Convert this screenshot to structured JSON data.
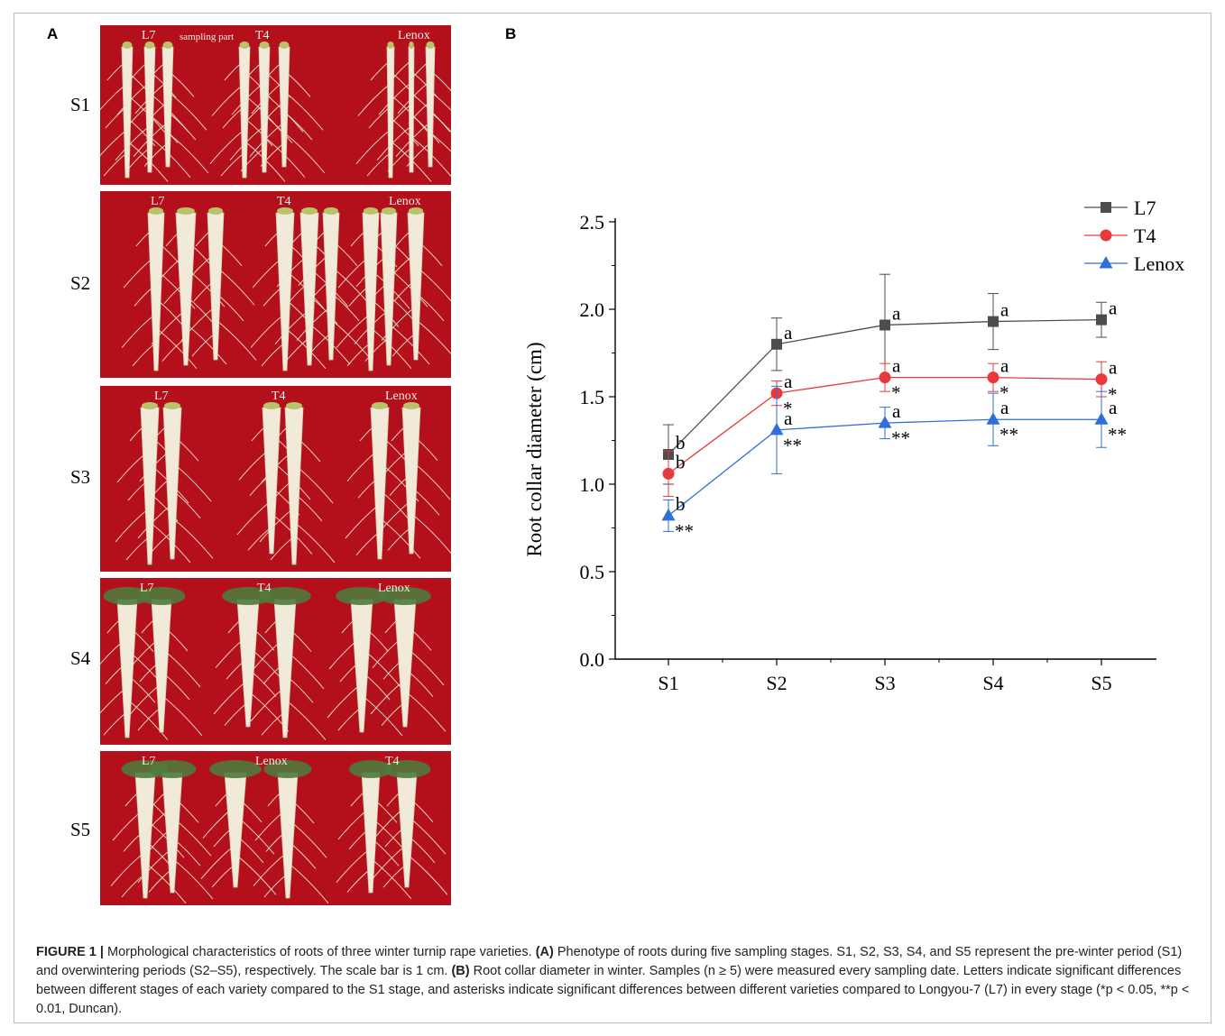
{
  "panels": {
    "a": "A",
    "b": "B"
  },
  "photo_panel": {
    "rows": [
      {
        "stage": "S1",
        "labels": [
          "L7",
          "T4",
          "Lenox"
        ],
        "annotation": "sampling part"
      },
      {
        "stage": "S2",
        "labels": [
          "L7",
          "T4",
          "Lenox"
        ]
      },
      {
        "stage": "S3",
        "labels": [
          "L7",
          "T4",
          "Lenox"
        ]
      },
      {
        "stage": "S4",
        "labels": [
          "L7",
          "T4",
          "Lenox"
        ]
      },
      {
        "stage": "S5",
        "labels": [
          "L7",
          "Lenox",
          "T4"
        ]
      }
    ]
  },
  "chart_data": {
    "type": "line",
    "ylabel": "Root collar diameter (cm)",
    "xlabel": "",
    "categories": [
      "S1",
      "S2",
      "S3",
      "S4",
      "S5"
    ],
    "ylim": [
      0,
      2.5
    ],
    "yticks": [
      "0.0",
      "0.5",
      "1.0",
      "1.5",
      "2.0",
      "2.5"
    ],
    "legend_position": "top-right",
    "series": [
      {
        "name": "L7",
        "color": "#4d4d4d",
        "marker": "square",
        "values": [
          1.17,
          1.8,
          1.91,
          1.93,
          1.94
        ],
        "errors": [
          0.17,
          0.15,
          0.29,
          0.16,
          0.1
        ],
        "letters": [
          "b",
          "a",
          "a",
          "a",
          "a"
        ],
        "stars": [
          "",
          "",
          "",
          "",
          ""
        ]
      },
      {
        "name": "T4",
        "color": "#e8393b",
        "marker": "circle",
        "values": [
          1.06,
          1.52,
          1.61,
          1.61,
          1.6
        ],
        "errors": [
          0.13,
          0.07,
          0.08,
          0.08,
          0.1
        ],
        "letters": [
          "b",
          "a",
          "a",
          "a",
          "a"
        ],
        "stars": [
          "",
          "*",
          "*",
          "*",
          "*"
        ]
      },
      {
        "name": "Lenox",
        "color": "#2f6fd8",
        "marker": "triangle",
        "values": [
          0.82,
          1.31,
          1.35,
          1.37,
          1.37
        ],
        "errors": [
          0.09,
          0.25,
          0.09,
          0.15,
          0.16
        ],
        "letters": [
          "b",
          "a",
          "a",
          "a",
          "a"
        ],
        "stars": [
          "**",
          "**",
          "**",
          "**",
          "**"
        ]
      }
    ]
  },
  "caption": {
    "label": "FIGURE 1 |",
    "text1": " Morphological characteristics of roots of three winter turnip rape varieties. ",
    "bold_a": "(A)",
    "text2": " Phenotype of roots during five sampling stages. S1, S2, S3, S4, and S5 represent the pre-winter period (S1) and overwintering periods (S2–S5), respectively. The scale bar is 1 cm. ",
    "bold_b": "(B)",
    "text3": " Root collar diameter in winter. Samples (n ≥ 5) were measured every sampling date. Letters indicate significant differences between different stages of each variety compared to the S1 stage, and asterisks indicate significant differences between different varieties compared to Longyou-7 (L7) in every stage (*p < 0.05, **p < 0.01, Duncan)."
  }
}
